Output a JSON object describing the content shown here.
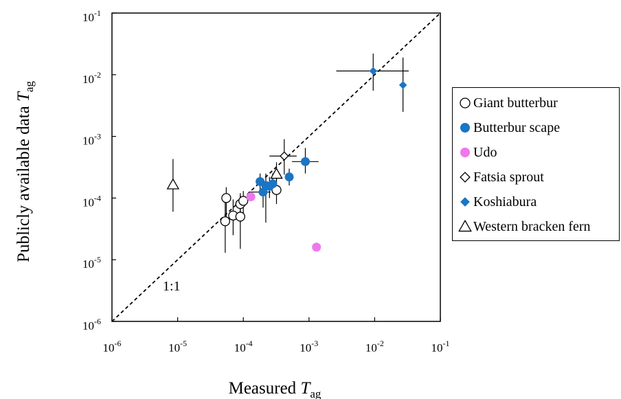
{
  "chart_data": {
    "type": "scatter",
    "xscale": "log",
    "yscale": "log",
    "xlim": [
      1e-06,
      0.1
    ],
    "ylim": [
      1e-06,
      0.1
    ],
    "x_ticks": [
      {
        "base": "10",
        "exp": "-6",
        "value": 1e-06
      },
      {
        "base": "10",
        "exp": "-5",
        "value": 1e-05
      },
      {
        "base": "10",
        "exp": "-4",
        "value": 0.0001
      },
      {
        "base": "10",
        "exp": "-3",
        "value": 0.001
      },
      {
        "base": "10",
        "exp": "-2",
        "value": 0.01
      },
      {
        "base": "10",
        "exp": "-1",
        "value": 0.1
      }
    ],
    "y_ticks": [
      {
        "base": "10",
        "exp": "-6",
        "value": 1e-06
      },
      {
        "base": "10",
        "exp": "-5",
        "value": 1e-05
      },
      {
        "base": "10",
        "exp": "-4",
        "value": 0.0001
      },
      {
        "base": "10",
        "exp": "-3",
        "value": 0.001
      },
      {
        "base": "10",
        "exp": "-2",
        "value": 0.01
      },
      {
        "base": "10",
        "exp": "-1",
        "value": 0.1
      }
    ],
    "xlabel": {
      "text": "Measured ",
      "italic": "T",
      "sub": "ag"
    },
    "ylabel": {
      "text": "Publicly available data ",
      "italic": "T",
      "sub": "ag"
    },
    "reference_line": {
      "label": "1:1",
      "style": "dashed"
    },
    "grid": false,
    "legend_position": "right",
    "series": [
      {
        "name": "Giant butterbur",
        "marker": "circle-open",
        "color": "#000000",
        "points": [
          {
            "x": 5.3e-05,
            "y": 4.2e-05,
            "ylo": 1.3e-05,
            "yhi": 0.0001
          },
          {
            "x": 5.5e-05,
            "y": 0.0001,
            "ylo": 4e-05,
            "yhi": 0.00015
          },
          {
            "x": 7e-05,
            "y": 5.2e-05,
            "ylo": 2.5e-05,
            "yhi": 9.5e-05
          },
          {
            "x": 9e-05,
            "y": 5e-05,
            "ylo": 1.5e-05,
            "yhi": 0.00012
          },
          {
            "x": 9e-05,
            "y": 8e-05,
            "ylo": 4e-05,
            "yhi": 0.00011
          },
          {
            "x": 0.0001,
            "y": 9e-05,
            "ylo": 5.5e-05,
            "yhi": 0.00013
          },
          {
            "x": 0.00032,
            "y": 0.000135,
            "ylo": 8e-05,
            "yhi": 0.00025
          }
        ]
      },
      {
        "name": "Butterbur scape",
        "marker": "circle-filled",
        "color": "#1a75c5",
        "points": [
          {
            "x": 0.00018,
            "y": 0.000185,
            "ylo": 0.00012,
            "yhi": 0.00025
          },
          {
            "x": 0.0002,
            "y": 0.000125,
            "ylo": 7e-05,
            "yhi": 0.00019,
            "xlo": 0.00012,
            "xhi": 0.00026
          },
          {
            "x": 0.00022,
            "y": 0.00016,
            "ylo": 4e-05,
            "yhi": 0.00025
          },
          {
            "x": 0.00025,
            "y": 0.000155,
            "ylo": 0.0001,
            "yhi": 0.00022
          },
          {
            "x": 0.00028,
            "y": 0.00017,
            "ylo": 0.00012,
            "yhi": 0.00025
          },
          {
            "x": 0.0005,
            "y": 0.00022,
            "ylo": 0.00016,
            "yhi": 0.0003
          },
          {
            "x": 0.00088,
            "y": 0.00039,
            "ylo": 0.00025,
            "yhi": 0.00065,
            "xlo": 0.00055,
            "xhi": 0.0014
          }
        ]
      },
      {
        "name": "Udo",
        "marker": "circle-filled",
        "color": "#ee77ee",
        "points": [
          {
            "x": 0.00013,
            "y": 0.000105
          },
          {
            "x": 0.0013,
            "y": 1.6e-05
          }
        ]
      },
      {
        "name": "Fatsia sprout",
        "marker": "diamond-open",
        "color": "#000000",
        "points": [
          {
            "x": 0.00042,
            "y": 0.00048,
            "ylo": 0.00024,
            "yhi": 0.0009,
            "xlo": 0.00025,
            "xhi": 0.00065
          }
        ]
      },
      {
        "name": "Koshiabura",
        "marker": "diamond-filled",
        "color": "#1a75c5",
        "points": [
          {
            "x": 0.0095,
            "y": 0.0115,
            "ylo": 0.0055,
            "yhi": 0.022,
            "xlo": 0.0026,
            "xhi": 0.033
          },
          {
            "x": 0.027,
            "y": 0.0068,
            "ylo": 0.0025,
            "yhi": 0.019
          }
        ]
      },
      {
        "name": "Western bracken fern",
        "marker": "triangle-open",
        "color": "#000000",
        "points": [
          {
            "x": 8.5e-06,
            "y": 0.000165,
            "ylo": 6e-05,
            "yhi": 0.00043
          },
          {
            "x": 0.00032,
            "y": 0.000245,
            "ylo": 0.00017,
            "yhi": 0.00038
          }
        ]
      }
    ]
  },
  "legend": {
    "items": [
      {
        "label": "Giant butterbur",
        "marker": "circle-open",
        "color": "#000000"
      },
      {
        "label": "Butterbur scape",
        "marker": "circle-filled",
        "color": "#1a75c5"
      },
      {
        "label": "Udo",
        "marker": "circle-filled",
        "color": "#ee77ee"
      },
      {
        "label": "Fatsia sprout",
        "marker": "diamond-open",
        "color": "#000000"
      },
      {
        "label": "Koshiabura",
        "marker": "diamond-filled",
        "color": "#1a75c5"
      },
      {
        "label": "Western bracken fern",
        "marker": "triangle-open",
        "color": "#000000"
      }
    ]
  }
}
